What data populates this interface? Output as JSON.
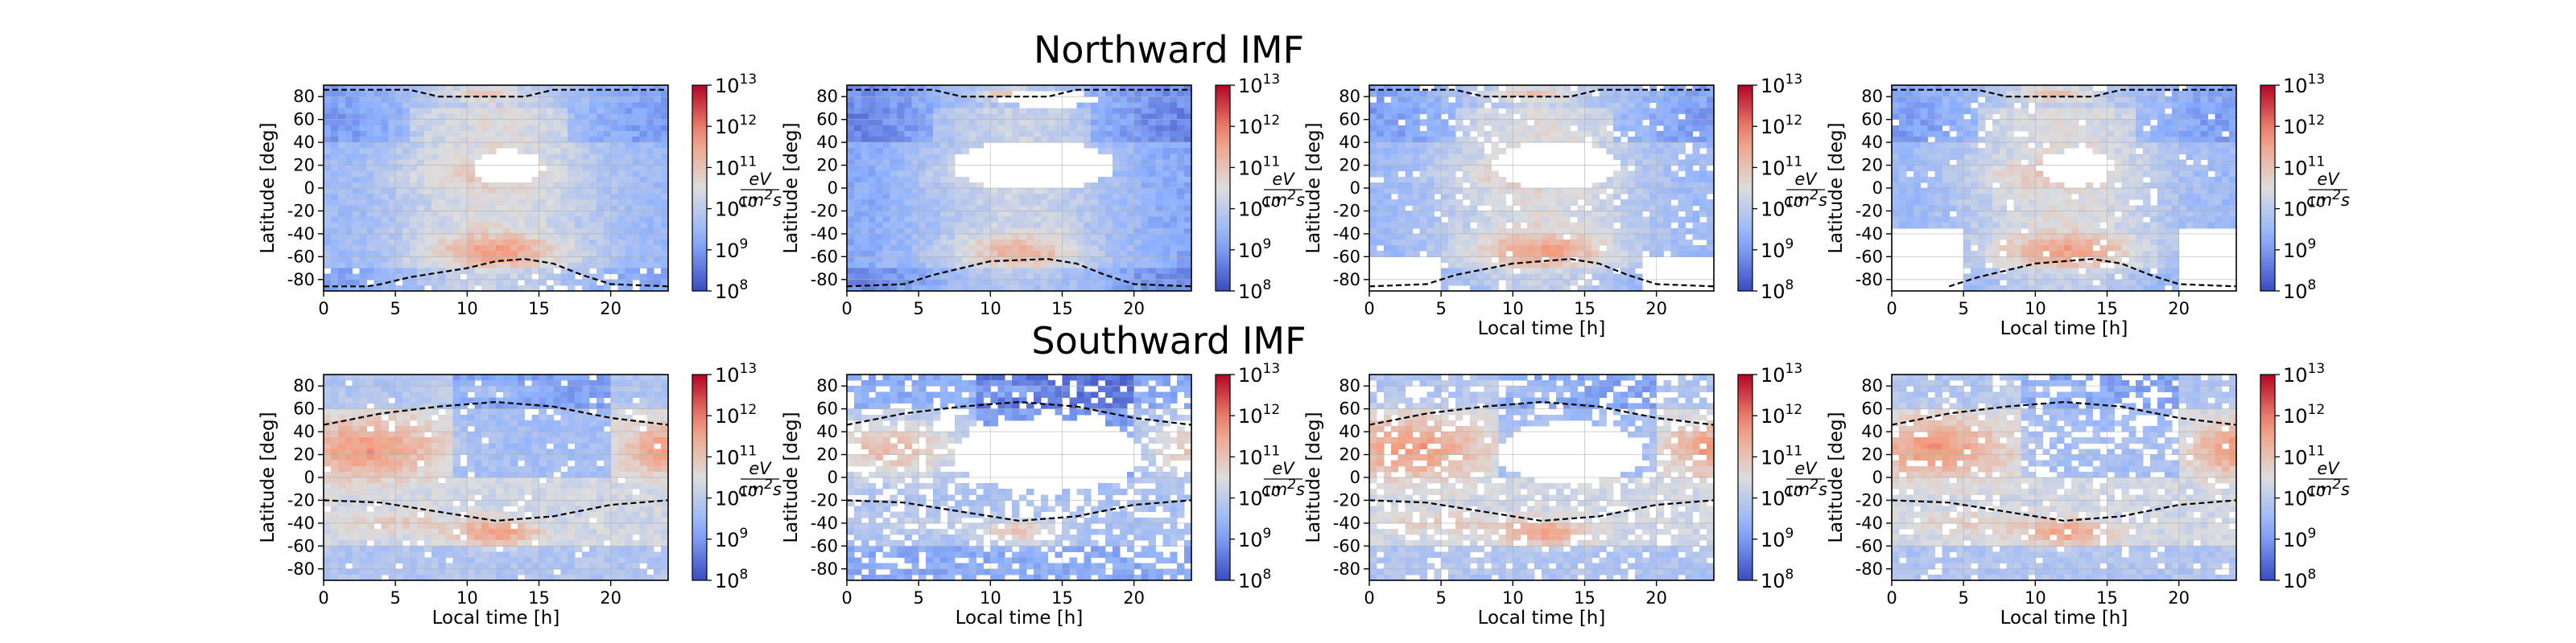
{
  "figure": {
    "row_titles": [
      "Northward IMF",
      "Southward IMF"
    ],
    "xlabel": "Local time [h]",
    "ylabel": "Latitude [deg]"
  },
  "colorbar": {
    "colormap": "coolwarm",
    "scale": "log",
    "range": [
      100000000,
      10000000000000
    ],
    "tick_base": "10",
    "tick_exponents": [
      "13",
      "12",
      "11",
      "10",
      "9",
      "8"
    ],
    "unit_numerator": "eV",
    "unit_denominator_base": "cm",
    "unit_denominator_exp": "2",
    "unit_denominator_tail": "s"
  },
  "colors": {
    "cmap_low": "#3b4cc0",
    "cmap_mid": "#dddddd",
    "cmap_high": "#b40426",
    "empty_bin": "#ffffff",
    "boundary": "#000000"
  },
  "chart_data": [
    {
      "panel": "northward-1",
      "type": "heatmap",
      "row": 0,
      "col": 0,
      "ylabel": "Latitude [deg]",
      "xlabel": "",
      "xlim": [
        0,
        24
      ],
      "ylim": [
        -90,
        90
      ],
      "xticks": [
        0,
        5,
        10,
        15,
        20
      ],
      "yticks": [
        80,
        60,
        40,
        20,
        0,
        -20,
        -40,
        -60,
        -80
      ],
      "boundary_upper": [
        [
          0,
          86
        ],
        [
          6,
          86
        ],
        [
          8,
          80
        ],
        [
          10,
          80
        ],
        [
          14,
          80
        ],
        [
          16,
          86
        ],
        [
          24,
          86
        ]
      ],
      "boundary_lower": [
        [
          0,
          -86
        ],
        [
          3,
          -86
        ],
        [
          4,
          -84
        ],
        [
          6,
          -78
        ],
        [
          10,
          -70
        ],
        [
          12,
          -64
        ],
        [
          14,
          -62
        ],
        [
          16,
          -66
        ],
        [
          18,
          -76
        ],
        [
          20,
          -84
        ],
        [
          24,
          -86
        ]
      ]
    },
    {
      "panel": "northward-2",
      "type": "heatmap",
      "row": 0,
      "col": 1,
      "ylabel": "Latitude [deg]",
      "xlabel": "",
      "xlim": [
        0,
        24
      ],
      "ylim": [
        -90,
        90
      ],
      "xticks": [
        0,
        5,
        10,
        15,
        20
      ],
      "yticks": [
        80,
        60,
        40,
        20,
        0,
        -20,
        -40,
        -60,
        -80
      ],
      "boundary_upper": [
        [
          0,
          86
        ],
        [
          6,
          86
        ],
        [
          8,
          80
        ],
        [
          10,
          80
        ],
        [
          14,
          80
        ],
        [
          16,
          86
        ],
        [
          24,
          86
        ]
      ],
      "boundary_lower": [
        [
          0,
          -86
        ],
        [
          4,
          -84
        ],
        [
          6,
          -76
        ],
        [
          10,
          -64
        ],
        [
          14,
          -62
        ],
        [
          16,
          -66
        ],
        [
          18,
          -76
        ],
        [
          20,
          -84
        ],
        [
          24,
          -86
        ]
      ]
    },
    {
      "panel": "northward-3",
      "type": "heatmap",
      "row": 0,
      "col": 2,
      "ylabel": "Latitude [deg]",
      "xlabel": "Local time [h]",
      "xlim": [
        0,
        24
      ],
      "ylim": [
        -90,
        90
      ],
      "xticks": [
        0,
        5,
        10,
        15,
        20
      ],
      "yticks": [
        80,
        60,
        40,
        20,
        0,
        -20,
        -40,
        -60,
        -80
      ],
      "boundary_upper": [
        [
          0,
          86
        ],
        [
          6,
          86
        ],
        [
          8,
          80
        ],
        [
          10,
          80
        ],
        [
          14,
          80
        ],
        [
          16,
          86
        ],
        [
          24,
          86
        ]
      ],
      "boundary_lower": [
        [
          0,
          -86
        ],
        [
          4,
          -84
        ],
        [
          6,
          -76
        ],
        [
          10,
          -66
        ],
        [
          14,
          -62
        ],
        [
          16,
          -66
        ],
        [
          18,
          -76
        ],
        [
          20,
          -84
        ],
        [
          24,
          -86
        ]
      ]
    },
    {
      "panel": "northward-4",
      "type": "heatmap",
      "row": 0,
      "col": 3,
      "ylabel": "Latitude [deg]",
      "xlabel": "Local time [h]",
      "xlim": [
        0,
        24
      ],
      "ylim": [
        -90,
        90
      ],
      "xticks": [
        0,
        5,
        10,
        15,
        20
      ],
      "yticks": [
        80,
        60,
        40,
        20,
        0,
        -20,
        -40,
        -60,
        -80
      ],
      "boundary_upper": [
        [
          0,
          86
        ],
        [
          6,
          86
        ],
        [
          8,
          80
        ],
        [
          10,
          80
        ],
        [
          14,
          80
        ],
        [
          16,
          86
        ],
        [
          24,
          86
        ]
      ],
      "boundary_lower": [
        [
          4,
          -86
        ],
        [
          6,
          -78
        ],
        [
          10,
          -66
        ],
        [
          14,
          -62
        ],
        [
          16,
          -66
        ],
        [
          18,
          -76
        ],
        [
          20,
          -84
        ],
        [
          24,
          -86
        ]
      ]
    },
    {
      "panel": "southward-1",
      "type": "heatmap",
      "row": 1,
      "col": 0,
      "ylabel": "Latitude [deg]",
      "xlabel": "Local time [h]",
      "xlim": [
        0,
        24
      ],
      "ylim": [
        -90,
        90
      ],
      "xticks": [
        0,
        5,
        10,
        15,
        20
      ],
      "yticks": [
        80,
        60,
        40,
        20,
        0,
        -20,
        -40,
        -60,
        -80
      ],
      "boundary_upper": [
        [
          0,
          46
        ],
        [
          4,
          56
        ],
        [
          8,
          62
        ],
        [
          12,
          66
        ],
        [
          16,
          62
        ],
        [
          20,
          52
        ],
        [
          24,
          46
        ]
      ],
      "boundary_lower": [
        [
          0,
          -20
        ],
        [
          4,
          -22
        ],
        [
          8,
          -30
        ],
        [
          12,
          -38
        ],
        [
          16,
          -34
        ],
        [
          20,
          -24
        ],
        [
          24,
          -20
        ]
      ]
    },
    {
      "panel": "southward-2",
      "type": "heatmap",
      "row": 1,
      "col": 1,
      "ylabel": "Latitude [deg]",
      "xlabel": "Local time [h]",
      "xlim": [
        0,
        24
      ],
      "ylim": [
        -90,
        90
      ],
      "xticks": [
        0,
        5,
        10,
        15,
        20
      ],
      "yticks": [
        80,
        60,
        40,
        20,
        0,
        -20,
        -40,
        -60,
        -80
      ],
      "boundary_upper": [
        [
          0,
          46
        ],
        [
          4,
          56
        ],
        [
          8,
          62
        ],
        [
          12,
          66
        ],
        [
          16,
          62
        ],
        [
          20,
          52
        ],
        [
          24,
          46
        ]
      ],
      "boundary_lower": [
        [
          0,
          -20
        ],
        [
          4,
          -22
        ],
        [
          8,
          -30
        ],
        [
          12,
          -38
        ],
        [
          16,
          -34
        ],
        [
          20,
          -24
        ],
        [
          24,
          -20
        ]
      ]
    },
    {
      "panel": "southward-3",
      "type": "heatmap",
      "row": 1,
      "col": 2,
      "ylabel": "Latitude [deg]",
      "xlabel": "Local time [h]",
      "xlim": [
        0,
        24
      ],
      "ylim": [
        -90,
        90
      ],
      "xticks": [
        0,
        5,
        10,
        15,
        20
      ],
      "yticks": [
        80,
        60,
        40,
        20,
        0,
        -20,
        -40,
        -60,
        -80
      ],
      "boundary_upper": [
        [
          0,
          46
        ],
        [
          4,
          56
        ],
        [
          8,
          62
        ],
        [
          12,
          66
        ],
        [
          16,
          62
        ],
        [
          20,
          52
        ],
        [
          24,
          46
        ]
      ],
      "boundary_lower": [
        [
          0,
          -20
        ],
        [
          4,
          -22
        ],
        [
          8,
          -30
        ],
        [
          12,
          -38
        ],
        [
          16,
          -34
        ],
        [
          20,
          -24
        ],
        [
          24,
          -20
        ]
      ]
    },
    {
      "panel": "southward-4",
      "type": "heatmap",
      "row": 1,
      "col": 3,
      "ylabel": "Latitude [deg]",
      "xlabel": "Local time [h]",
      "xlim": [
        0,
        24
      ],
      "ylim": [
        -90,
        90
      ],
      "xticks": [
        0,
        5,
        10,
        15,
        20
      ],
      "yticks": [
        80,
        60,
        40,
        20,
        0,
        -20,
        -40,
        -60,
        -80
      ],
      "boundary_upper": [
        [
          0,
          46
        ],
        [
          4,
          56
        ],
        [
          8,
          62
        ],
        [
          12,
          66
        ],
        [
          16,
          62
        ],
        [
          20,
          52
        ],
        [
          24,
          46
        ]
      ],
      "boundary_lower": [
        [
          0,
          -20
        ],
        [
          4,
          -22
        ],
        [
          8,
          -30
        ],
        [
          12,
          -38
        ],
        [
          16,
          -34
        ],
        [
          20,
          -24
        ],
        [
          24,
          -20
        ]
      ]
    }
  ]
}
